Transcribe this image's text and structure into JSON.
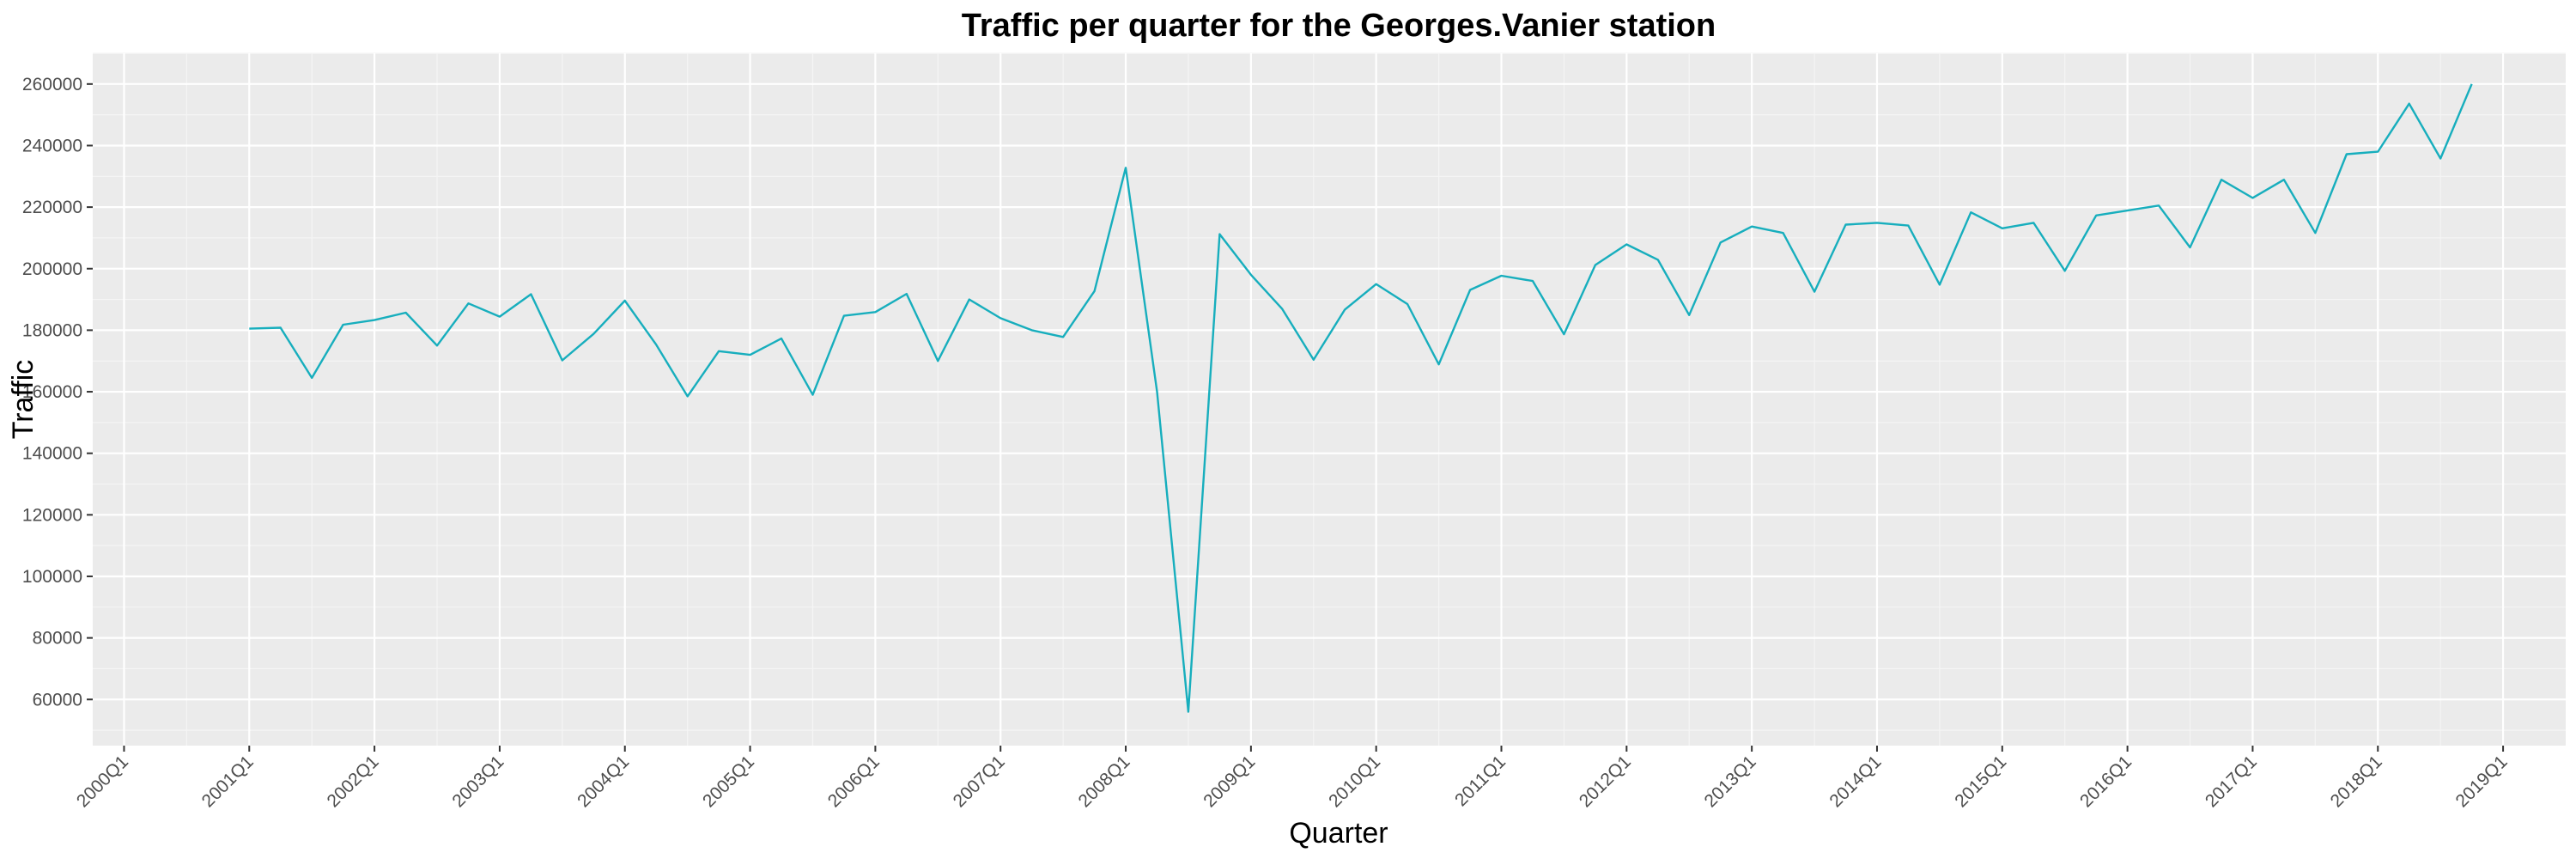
{
  "chart_data": {
    "type": "line",
    "title": "Traffic per quarter for the Georges.Vanier station",
    "xlabel": "Quarter",
    "ylabel": "Traffic",
    "x_ticks": [
      "2000Q1",
      "2001Q1",
      "2002Q1",
      "2003Q1",
      "2004Q1",
      "2005Q1",
      "2006Q1",
      "2007Q1",
      "2008Q1",
      "2009Q1",
      "2010Q1",
      "2011Q1",
      "2012Q1",
      "2013Q1",
      "2014Q1",
      "2015Q1",
      "2016Q1",
      "2017Q1",
      "2018Q1",
      "2019Q1"
    ],
    "y_ticks": [
      60000,
      80000,
      100000,
      120000,
      140000,
      160000,
      180000,
      200000,
      220000,
      240000,
      260000
    ],
    "ylim": [
      45000,
      270000
    ],
    "xlim": [
      "1999Q4",
      "2019Q3"
    ],
    "grid": true,
    "colors": {
      "line": "#17aebd",
      "panel": "#ebebeb",
      "grid": "#ffffff"
    },
    "series": [
      {
        "x": [
          "2001Q1",
          "2001Q2",
          "2001Q3",
          "2001Q4",
          "2002Q1",
          "2002Q2",
          "2002Q3",
          "2002Q4",
          "2003Q1",
          "2003Q2",
          "2003Q3",
          "2003Q4",
          "2004Q1",
          "2004Q2",
          "2004Q3",
          "2004Q4",
          "2005Q1",
          "2005Q2",
          "2005Q3",
          "2005Q4",
          "2006Q1",
          "2006Q2",
          "2006Q3",
          "2006Q4",
          "2007Q1",
          "2007Q2",
          "2007Q3",
          "2007Q4",
          "2008Q1",
          "2008Q2",
          "2008Q3",
          "2008Q4",
          "2009Q1",
          "2009Q2",
          "2009Q3",
          "2009Q4",
          "2010Q1",
          "2010Q2",
          "2010Q3",
          "2010Q4",
          "2011Q1",
          "2011Q2",
          "2011Q3",
          "2011Q4",
          "2012Q1",
          "2012Q2",
          "2012Q3",
          "2012Q4",
          "2013Q1",
          "2013Q2",
          "2013Q3",
          "2013Q4",
          "2014Q1",
          "2014Q2",
          "2014Q3",
          "2014Q4",
          "2015Q1",
          "2015Q2",
          "2015Q3",
          "2015Q4",
          "2016Q1",
          "2016Q2",
          "2016Q3",
          "2016Q4",
          "2017Q1",
          "2017Q2",
          "2017Q3",
          "2017Q4",
          "2018Q1",
          "2018Q2",
          "2018Q3",
          "2018Q4"
        ],
        "values": [
          180500,
          180800,
          164500,
          181800,
          183300,
          185700,
          175000,
          188700,
          184400,
          191700,
          170200,
          178800,
          189600,
          175300,
          158500,
          173200,
          172000,
          177300,
          159000,
          184700,
          185900,
          191800,
          170000,
          190000,
          183900,
          180000,
          177800,
          192700,
          232800,
          160000,
          56000,
          211200,
          198000,
          186900,
          170400,
          186700,
          195000,
          188500,
          168900,
          193100,
          197700,
          196000,
          178700,
          201200,
          207900,
          202900,
          184900,
          208500,
          213700,
          211600,
          192500,
          214300,
          214900,
          214000,
          194800,
          218300,
          213100,
          214900,
          199300,
          217300,
          218900,
          220500,
          206900,
          228900,
          223000,
          228900,
          211600,
          237200,
          238000,
          253600,
          235800,
          260000
        ]
      }
    ]
  }
}
